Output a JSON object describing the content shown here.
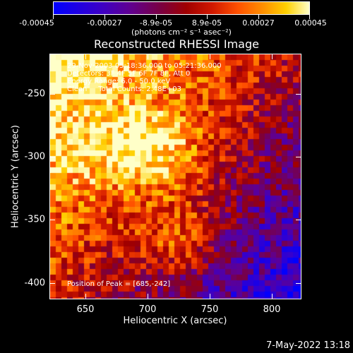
{
  "colorbar": {
    "tick_labels": [
      "-0.00045",
      "-0.00027",
      "-8.9e-05",
      "8.9e-05",
      "0.00027",
      "0.00045"
    ],
    "units": "(photons cm⁻² s⁻¹ asec⁻²)",
    "colors": [
      "#0000ff",
      "#600090",
      "#a00000",
      "#ff5000",
      "#ffd000",
      "#ffffc8"
    ]
  },
  "plot": {
    "title": "Reconstructed RHESSI Image",
    "x_axis_title": "Heliocentric X (arcsec)",
    "y_axis_title": "Heliocentric Y (arcsec)",
    "x_tick_labels": [
      "650",
      "700",
      "750",
      "800"
    ],
    "y_tick_labels": [
      "-250",
      "-300",
      "-350",
      "-400"
    ],
    "x_range": [
      626,
      816
    ],
    "y_range": [
      -410,
      -218
    ],
    "info_lines": [
      "29-Nov-2003 05:18:36.000 to 05:21:36.000",
      "Detectors: 3F 4F 5F 6F 7F 8F, Att 0",
      "Energy Range: 6.0 - 50.0 keV",
      "Clean     Total Counts: 2.48E+03"
    ],
    "peak_label": "Position of Peak = [685,-242]"
  },
  "footer": {
    "timestamp": "7-May-2022 13:18"
  }
}
